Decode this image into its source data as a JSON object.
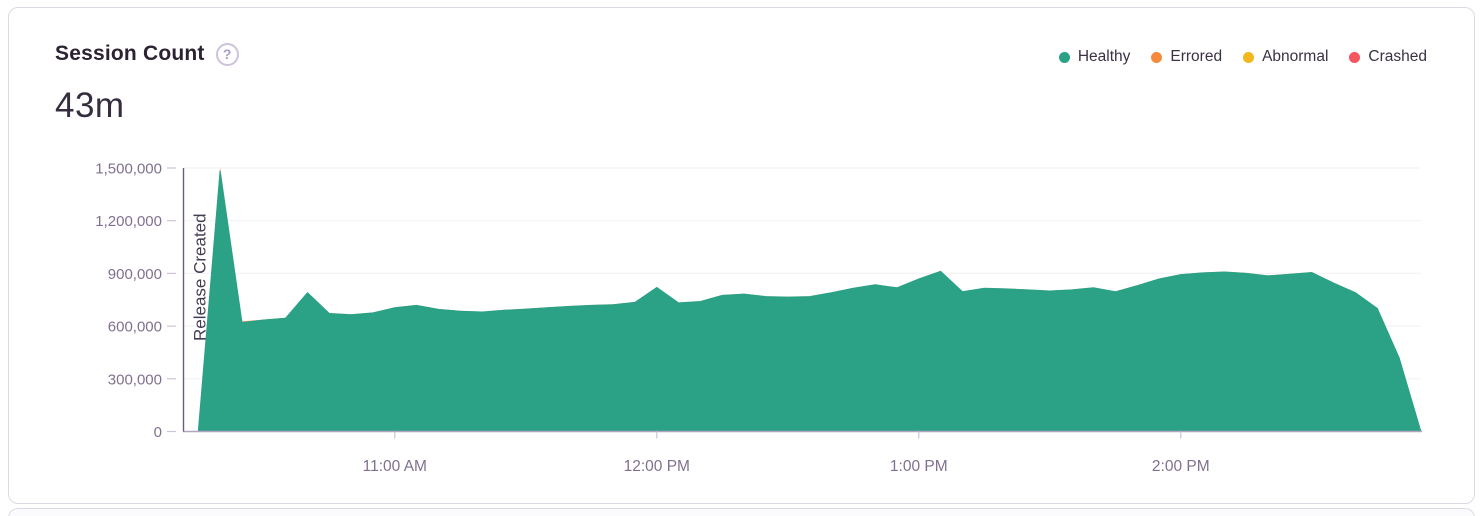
{
  "panel": {
    "title": "Session Count",
    "help_icon": "?",
    "total": "43m"
  },
  "legend": [
    {
      "label": "Healthy",
      "color": "#2BA185"
    },
    {
      "label": "Errored",
      "color": "#F58A3D"
    },
    {
      "label": "Abnormal",
      "color": "#F1B71C"
    },
    {
      "label": "Crashed",
      "color": "#F4555E"
    }
  ],
  "chart_data": {
    "type": "area",
    "stacked": true,
    "title": "Session Count",
    "xlabel": "",
    "ylabel": "",
    "ylim": [
      0,
      1500000
    ],
    "grid": true,
    "legend_position": "top-right",
    "x": [
      "10:15 AM",
      "10:20 AM",
      "10:25 AM",
      "10:30 AM",
      "10:35 AM",
      "10:40 AM",
      "10:45 AM",
      "10:50 AM",
      "10:55 AM",
      "11:00 AM",
      "11:05 AM",
      "11:10 AM",
      "11:15 AM",
      "11:20 AM",
      "11:25 AM",
      "11:30 AM",
      "11:35 AM",
      "11:40 AM",
      "11:45 AM",
      "11:50 AM",
      "11:55 AM",
      "12:00 PM",
      "12:05 PM",
      "12:10 PM",
      "12:15 PM",
      "12:20 PM",
      "12:25 PM",
      "12:30 PM",
      "12:35 PM",
      "12:40 PM",
      "12:45 PM",
      "12:50 PM",
      "12:55 PM",
      "1:00 PM",
      "1:05 PM",
      "1:10 PM",
      "1:15 PM",
      "1:20 PM",
      "1:25 PM",
      "1:30 PM",
      "1:35 PM",
      "1:40 PM",
      "1:45 PM",
      "1:50 PM",
      "1:55 PM",
      "2:00 PM",
      "2:05 PM",
      "2:10 PM",
      "2:15 PM",
      "2:20 PM",
      "2:25 PM",
      "2:30 PM",
      "2:35 PM",
      "2:40 PM",
      "2:45 PM",
      "2:50 PM",
      "2:55 PM"
    ],
    "series": [
      {
        "name": "Healthy",
        "color": "#2BA185",
        "values": [
          0,
          1485000,
          620000,
          635000,
          645000,
          790000,
          672000,
          665000,
          675000,
          705000,
          718000,
          695000,
          685000,
          680000,
          690000,
          697000,
          705000,
          712000,
          718000,
          722000,
          735000,
          820000,
          732000,
          740000,
          775000,
          782000,
          768000,
          765000,
          768000,
          790000,
          815000,
          835000,
          818000,
          868000,
          912000,
          795000,
          815000,
          812000,
          806000,
          800000,
          806000,
          818000,
          795000,
          830000,
          868000,
          893000,
          903000,
          908000,
          900000,
          886000,
          895000,
          905000,
          845000,
          790000,
          700000,
          420000,
          0
        ]
      },
      {
        "name": "Errored",
        "color": "#F29A5F",
        "values": [
          0,
          18000,
          8000,
          2000,
          2000,
          2000,
          2000,
          2000,
          2000,
          2000,
          2000,
          2000,
          2000,
          2000,
          2000,
          2000,
          2000,
          2000,
          2000,
          2000,
          2000,
          2000,
          2000,
          2000,
          2000,
          2000,
          2000,
          2000,
          2000,
          2000,
          2000,
          2000,
          2000,
          2000,
          2000,
          2000,
          2000,
          2000,
          2000,
          2000,
          2000,
          2000,
          2000,
          2000,
          2000,
          2000,
          2000,
          2000,
          2000,
          2000,
          2000,
          2000,
          2000,
          2000,
          2000,
          1000,
          0
        ]
      }
    ],
    "yticks": [
      {
        "value": 0,
        "label": "0"
      },
      {
        "value": 300000,
        "label": "300,000"
      },
      {
        "value": 600000,
        "label": "600,000"
      },
      {
        "value": 900000,
        "label": "900,000"
      },
      {
        "value": 1200000,
        "label": "1,200,000"
      },
      {
        "value": 1500000,
        "label": "1,500,000"
      }
    ],
    "xticks": [
      {
        "index": 9,
        "label": "11:00 AM"
      },
      {
        "index": 21,
        "label": "12:00 PM"
      },
      {
        "index": 33,
        "label": "1:00 PM"
      },
      {
        "index": 45,
        "label": "2:00 PM"
      }
    ],
    "annotation": {
      "label": "Release Created"
    }
  }
}
